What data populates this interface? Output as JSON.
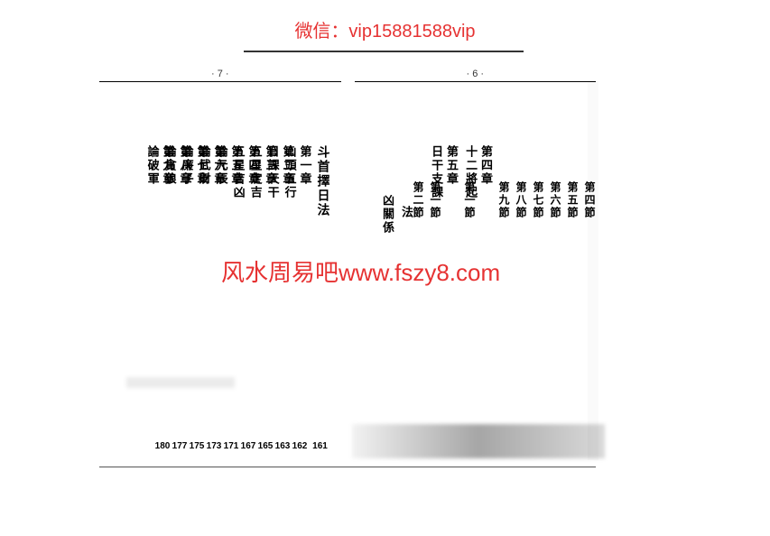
{
  "wechat_text": "微信：vip15881588vip",
  "watermark_text": "风水周易吧www.fszy8.com",
  "left_page": {
    "page_num": "· 7 ·",
    "title": "斗首擇日法",
    "columns": [
      {
        "chapter": "第一章",
        "text": "山頭五行"
      },
      {
        "chapter": "第二章",
        "text": "日課天干"
      },
      {
        "chapter": "第三章",
        "text": "五星定吉"
      },
      {
        "chapter": "第四章",
        "text": "五星吉凶"
      },
      {
        "chapter": "第五章",
        "text": "論元辰"
      },
      {
        "chapter": "第六章",
        "text": "論武財"
      },
      {
        "chapter": "第七章",
        "text": "論廉子"
      },
      {
        "chapter": "第八章",
        "text": "論貪狼"
      },
      {
        "chapter": "第九章",
        "text": "論破軍"
      }
    ],
    "page_nums": [
      "161",
      "162",
      "163",
      "165",
      "167",
      "171",
      "173",
      "175",
      "177",
      "180"
    ]
  },
  "right_page": {
    "page_num": "· 6 ·",
    "columns": [
      {
        "chapter": "第四節",
        "text": ""
      },
      {
        "chapter": "第五節",
        "text": ""
      },
      {
        "chapter": "第六節",
        "text": ""
      },
      {
        "chapter": "第七節",
        "text": ""
      },
      {
        "chapter": "第八節",
        "text": ""
      },
      {
        "chapter": "第九節",
        "text": ""
      }
    ],
    "chapter4": {
      "label": "第四章",
      "text": "十二將起"
    },
    "chapter4_sub": {
      "chapter": "第一節",
      "text": ""
    },
    "chapter5": {
      "label": "第五章",
      "text": "日干支課"
    },
    "chapter5_sub1": {
      "chapter": "第一節",
      "text": ""
    },
    "chapter5_sub2": {
      "chapter": "第二節",
      "text": ""
    },
    "extra_below": "凶關係",
    "extra_fa": "法"
  },
  "colors": {
    "text": "#000000",
    "red": "#e63232",
    "background": "#ffffff"
  }
}
